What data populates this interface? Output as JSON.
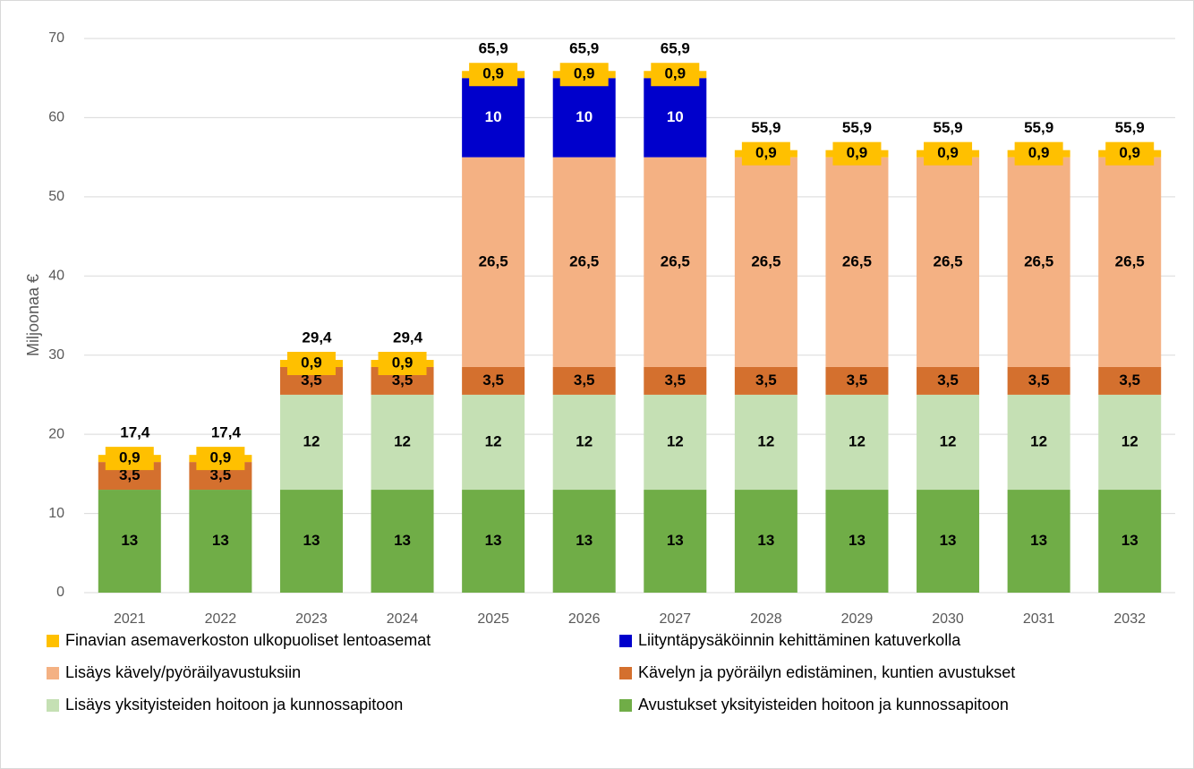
{
  "chart_data": {
    "type": "stacked_bar",
    "y_label": "Miljoonaa €",
    "categories": [
      "2021",
      "2022",
      "2023",
      "2024",
      "2025",
      "2026",
      "2027",
      "2028",
      "2029",
      "2030",
      "2031",
      "2032"
    ],
    "series": [
      {
        "name": "Avustukset yksityisteiden hoitoon ja kunnossapitoon",
        "color": "#70ad47",
        "label_color": "#000000",
        "values": [
          13,
          13,
          13,
          13,
          13,
          13,
          13,
          13,
          13,
          13,
          13,
          13
        ]
      },
      {
        "name": "Lisäys yksityisteiden hoitoon ja kunnossapitoon",
        "color": "#c5e0b4",
        "label_color": "#000000",
        "values": [
          null,
          null,
          12,
          12,
          12,
          12,
          12,
          12,
          12,
          12,
          12,
          12
        ]
      },
      {
        "name": "Kävelyn ja pyöräilyn edistäminen, kuntien avustukset",
        "color": "#d4702e",
        "label_color": "#000000",
        "values": [
          3.5,
          3.5,
          3.5,
          3.5,
          3.5,
          3.5,
          3.5,
          3.5,
          3.5,
          3.5,
          3.5,
          3.5
        ],
        "value_labels": [
          "3,5",
          "3,5",
          "3,5",
          "3,5",
          "3,5",
          "3,5",
          "3,5",
          "3,5",
          "3,5",
          "3,5",
          "3,5",
          "3,5"
        ]
      },
      {
        "name": "Lisäys kävely/pyöräilyavustuksiin",
        "color": "#f4b183",
        "label_color": "#000000",
        "values": [
          null,
          null,
          null,
          null,
          26.5,
          26.5,
          26.5,
          26.5,
          26.5,
          26.5,
          26.5,
          26.5
        ],
        "value_labels": [
          null,
          null,
          null,
          null,
          "26,5",
          "26,5",
          "26,5",
          "26,5",
          "26,5",
          "26,5",
          "26,5",
          "26,5"
        ]
      },
      {
        "name": "Liityntäpysäköinnin kehittäminen katuverkolla",
        "color": "#0000cc",
        "label_color": "#ffffff",
        "values": [
          null,
          null,
          null,
          null,
          10,
          10,
          10,
          null,
          null,
          null,
          null,
          null
        ]
      },
      {
        "name": "Finavian asemaverkoston ulkopuoliset lentoasemat",
        "color": "#ffc000",
        "label_color": "#000000",
        "values": [
          0.9,
          0.9,
          0.9,
          0.9,
          0.9,
          0.9,
          0.9,
          0.9,
          0.9,
          0.9,
          0.9,
          0.9
        ],
        "value_labels": [
          "0,9",
          "0,9",
          "0,9",
          "0,9",
          "0,9",
          "0,9",
          "0,9",
          "0,9",
          "0,9",
          "0,9",
          "0,9",
          "0,9"
        ]
      }
    ],
    "totals": [
      17.4,
      17.4,
      29.4,
      29.4,
      65.9,
      65.9,
      65.9,
      55.9,
      55.9,
      55.9,
      55.9,
      55.9
    ],
    "total_labels": [
      "17,4",
      "17,4",
      "29,4",
      "29,4",
      "65,9",
      "65,9",
      "65,9",
      "55,9",
      "55,9",
      "55,9",
      "55,9",
      "55,9"
    ],
    "ylim": [
      0,
      70
    ],
    "yticks": [
      0,
      10,
      20,
      30,
      40,
      50,
      60,
      70
    ],
    "grid": true,
    "legend": "bottom"
  }
}
